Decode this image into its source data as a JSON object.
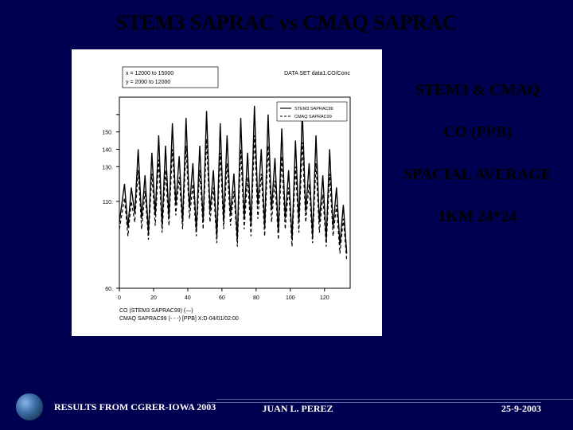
{
  "title": "STEM3 SAPRAC vs CMAQ SAPRAC",
  "side": {
    "line1": "STEM3 & CMAQ",
    "line2": "CO (PPB)",
    "line3": "SPACIAL AVERAGE",
    "line4": "1KM 24*24"
  },
  "chart": {
    "type": "line",
    "background_color": "#ffffff",
    "axis_color": "#000000",
    "legend_top_left": {
      "line1": "x  = 12000 to  15000",
      "line2": "y  =  2000 to  12000"
    },
    "toptitle": "DATA SET  data1.CO/Conc",
    "legend_small_box": [
      "STEM3 SAPRAC99",
      "CMAQ SAPRAC99"
    ],
    "xlabel_left": "CO (STEM3 SAPRAC99) (—)",
    "xlabel_right": "CMAQ SAPRAC99 (- - -)  [PPB]  X:D-04/01/02:00",
    "xlim": [
      0,
      135
    ],
    "ylim": [
      60,
      170
    ],
    "xticks": [
      0,
      20,
      40,
      60,
      80,
      100,
      120
    ],
    "yticks": [
      60,
      110,
      130,
      140,
      150,
      160
    ],
    "ytick_labels": [
      "60.",
      "110.",
      "130.",
      "140.",
      "150.",
      ""
    ],
    "line_color": "#000000",
    "line_width_solid": 1.4,
    "line_width_dash": 1.2,
    "dash_pattern": "4 3",
    "series_solid": [
      [
        0,
        98
      ],
      [
        3,
        120
      ],
      [
        5,
        95
      ],
      [
        7,
        118
      ],
      [
        9,
        103
      ],
      [
        11,
        140
      ],
      [
        13,
        100
      ],
      [
        15,
        125
      ],
      [
        17,
        92
      ],
      [
        19,
        138
      ],
      [
        21,
        102
      ],
      [
        23,
        148
      ],
      [
        25,
        96
      ],
      [
        27,
        142
      ],
      [
        29,
        100
      ],
      [
        31,
        155
      ],
      [
        33,
        108
      ],
      [
        35,
        136
      ],
      [
        37,
        98
      ],
      [
        39,
        158
      ],
      [
        41,
        106
      ],
      [
        43,
        132
      ],
      [
        45,
        93
      ],
      [
        47,
        142
      ],
      [
        49,
        98
      ],
      [
        51,
        162
      ],
      [
        53,
        104
      ],
      [
        55,
        128
      ],
      [
        57,
        90
      ],
      [
        59,
        155
      ],
      [
        61,
        98
      ],
      [
        63,
        148
      ],
      [
        65,
        102
      ],
      [
        67,
        126
      ],
      [
        69,
        88
      ],
      [
        71,
        158
      ],
      [
        73,
        100
      ],
      [
        75,
        138
      ],
      [
        77,
        96
      ],
      [
        79,
        165
      ],
      [
        81,
        108
      ],
      [
        83,
        140
      ],
      [
        85,
        95
      ],
      [
        87,
        160
      ],
      [
        89,
        105
      ],
      [
        91,
        135
      ],
      [
        93,
        92
      ],
      [
        95,
        152
      ],
      [
        97,
        100
      ],
      [
        99,
        128
      ],
      [
        101,
        88
      ],
      [
        103,
        145
      ],
      [
        105,
        98
      ],
      [
        107,
        162
      ],
      [
        109,
        104
      ],
      [
        111,
        132
      ],
      [
        113,
        90
      ],
      [
        115,
        148
      ],
      [
        117,
        98
      ],
      [
        119,
        125
      ],
      [
        121,
        88
      ],
      [
        123,
        140
      ],
      [
        125,
        95
      ],
      [
        127,
        118
      ],
      [
        129,
        85
      ],
      [
        131,
        108
      ],
      [
        133,
        80
      ]
    ],
    "series_dash": [
      [
        0,
        94
      ],
      [
        3,
        112
      ],
      [
        5,
        90
      ],
      [
        7,
        110
      ],
      [
        9,
        98
      ],
      [
        11,
        128
      ],
      [
        13,
        94
      ],
      [
        15,
        116
      ],
      [
        17,
        88
      ],
      [
        19,
        126
      ],
      [
        21,
        96
      ],
      [
        23,
        134
      ],
      [
        25,
        92
      ],
      [
        27,
        128
      ],
      [
        29,
        96
      ],
      [
        31,
        140
      ],
      [
        33,
        102
      ],
      [
        35,
        124
      ],
      [
        37,
        94
      ],
      [
        39,
        142
      ],
      [
        41,
        100
      ],
      [
        43,
        120
      ],
      [
        45,
        90
      ],
      [
        47,
        128
      ],
      [
        49,
        94
      ],
      [
        51,
        146
      ],
      [
        53,
        98
      ],
      [
        55,
        118
      ],
      [
        57,
        86
      ],
      [
        59,
        138
      ],
      [
        61,
        94
      ],
      [
        63,
        132
      ],
      [
        65,
        96
      ],
      [
        67,
        116
      ],
      [
        69,
        84
      ],
      [
        71,
        140
      ],
      [
        73,
        94
      ],
      [
        75,
        124
      ],
      [
        77,
        90
      ],
      [
        79,
        148
      ],
      [
        81,
        100
      ],
      [
        83,
        126
      ],
      [
        85,
        90
      ],
      [
        87,
        142
      ],
      [
        89,
        98
      ],
      [
        91,
        122
      ],
      [
        93,
        88
      ],
      [
        95,
        136
      ],
      [
        97,
        94
      ],
      [
        99,
        118
      ],
      [
        101,
        84
      ],
      [
        103,
        130
      ],
      [
        105,
        92
      ],
      [
        107,
        144
      ],
      [
        109,
        98
      ],
      [
        111,
        120
      ],
      [
        113,
        86
      ],
      [
        115,
        132
      ],
      [
        117,
        92
      ],
      [
        119,
        114
      ],
      [
        121,
        84
      ],
      [
        123,
        126
      ],
      [
        125,
        90
      ],
      [
        127,
        108
      ],
      [
        129,
        80
      ],
      [
        131,
        100
      ],
      [
        133,
        76
      ]
    ],
    "label_fontsize": 7,
    "toptitle_fontsize": 7
  },
  "footer": {
    "left": "RESULTS FROM CGRER-IOWA 2003",
    "center": "JUAN L. PEREZ",
    "right": "25-9-2003"
  }
}
